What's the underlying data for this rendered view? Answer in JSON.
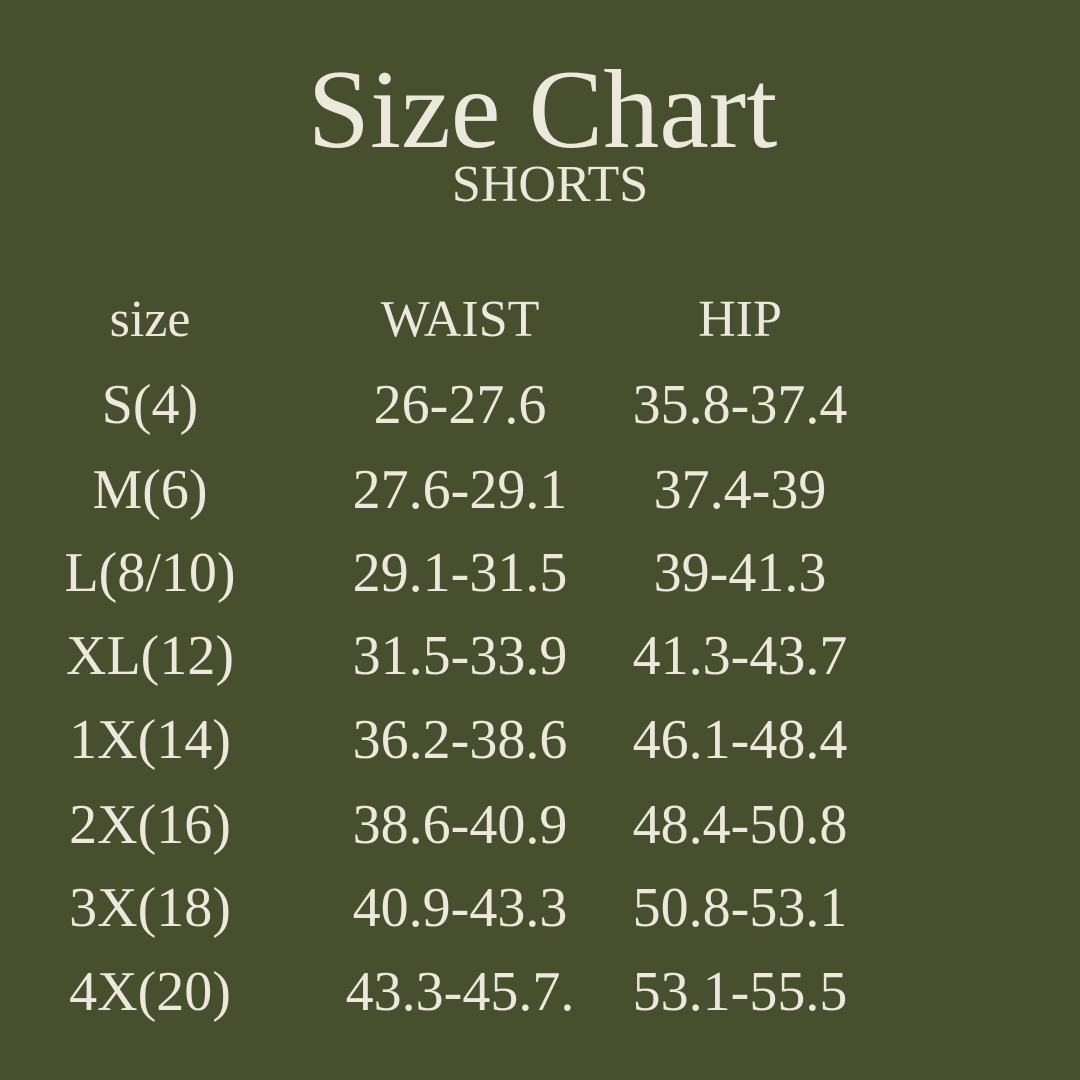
{
  "title": "Size Chart",
  "subtitle": "SHORTS",
  "colors": {
    "background": "#474f2f",
    "text": "#ece8dc"
  },
  "headers": [
    "size",
    "WAIST",
    "HIP"
  ],
  "rows": [
    [
      "S(4)",
      "26-27.6",
      "35.8-37.4"
    ],
    [
      "M(6)",
      "27.6-29.1",
      "37.4-39"
    ],
    [
      "L(8/10)",
      "29.1-31.5",
      "39-41.3"
    ],
    [
      "XL(12)",
      "31.5-33.9",
      "41.3-43.7"
    ],
    [
      "1X(14)",
      "36.2-38.6",
      "46.1-48.4"
    ],
    [
      "2X(16)",
      "38.6-40.9",
      "48.4-50.8"
    ],
    [
      "3X(18)",
      "40.9-43.3",
      "50.8-53.1"
    ],
    [
      "4X(20)",
      "43.3-45.7.",
      "53.1-55.5"
    ]
  ]
}
